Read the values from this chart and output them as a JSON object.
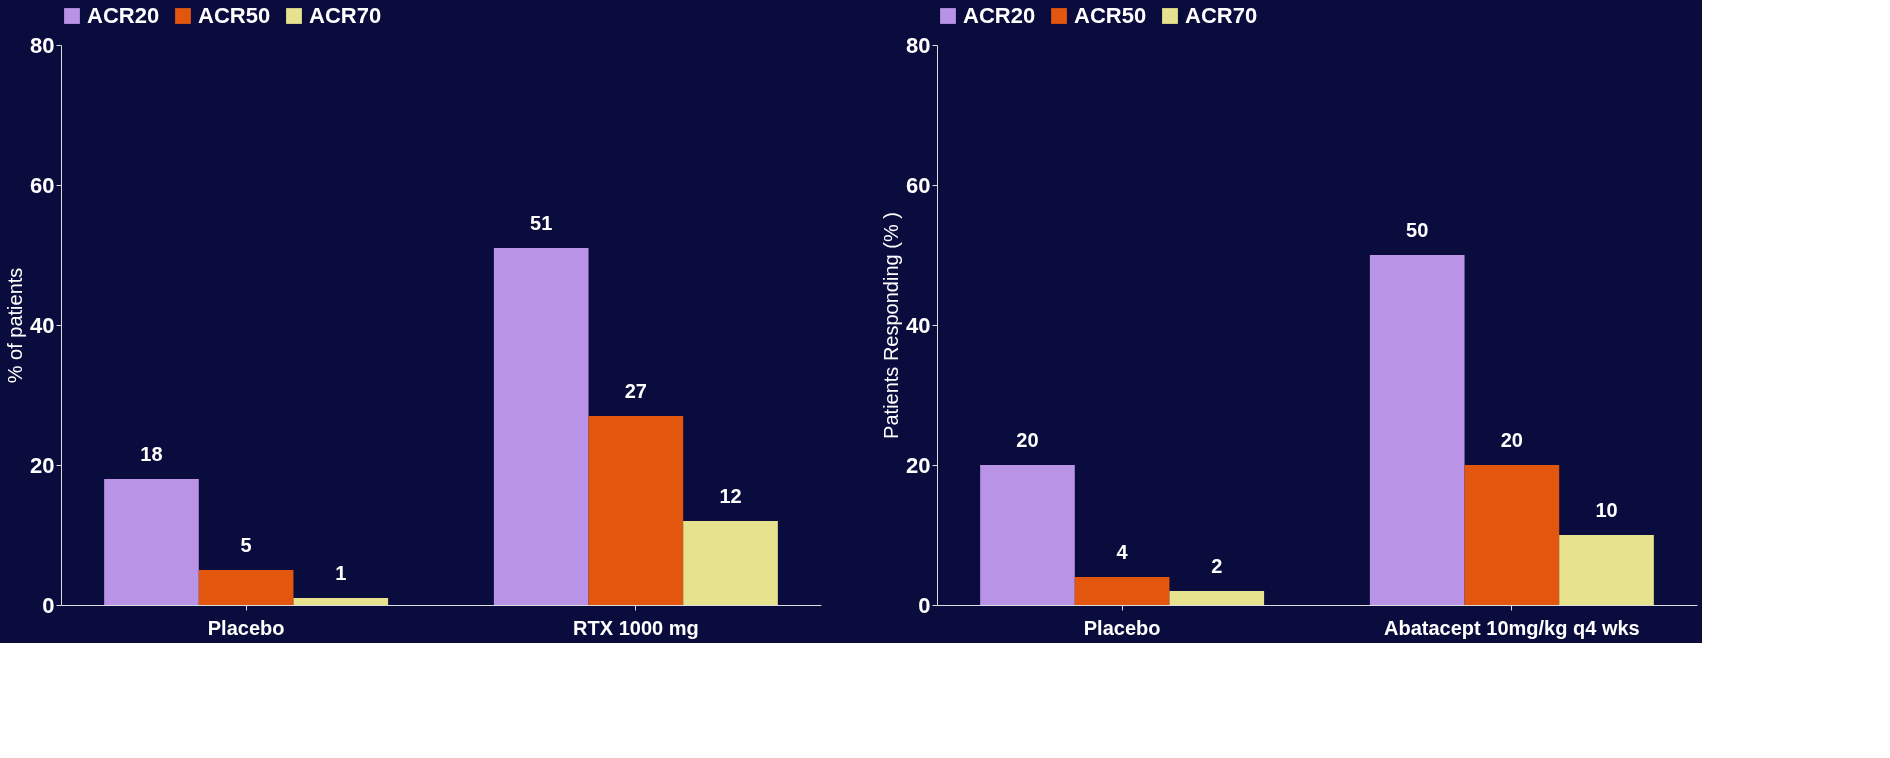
{
  "chart_data": [
    {
      "type": "bar",
      "ylabel": "% of patients",
      "categories": [
        "Placebo",
        "RTX 1000 mg"
      ],
      "series": [
        {
          "name": "ACR20",
          "color": "#b893e6",
          "values": [
            18,
            51
          ]
        },
        {
          "name": "ACR50",
          "color": "#e3560e",
          "values": [
            5,
            27
          ]
        },
        {
          "name": "ACR70",
          "color": "#e6e28e",
          "values": [
            1,
            12
          ]
        }
      ],
      "ylim": [
        0,
        80
      ],
      "yticks": [
        0,
        20,
        40,
        60,
        80
      ],
      "data_labels": true,
      "legend": "top",
      "grid": false
    },
    {
      "type": "bar",
      "ylabel": "Patients Responding (% )",
      "categories": [
        "Placebo",
        "Abatacept 10mg/kg q4 wks"
      ],
      "series": [
        {
          "name": "ACR20",
          "color": "#b893e6",
          "values": [
            20,
            50
          ]
        },
        {
          "name": "ACR50",
          "color": "#e3560e",
          "values": [
            4,
            20
          ]
        },
        {
          "name": "ACR70",
          "color": "#e6e28e",
          "values": [
            2,
            10
          ]
        }
      ],
      "ylim": [
        0,
        80
      ],
      "yticks": [
        0,
        20,
        40,
        60,
        80
      ],
      "data_labels": true,
      "legend": "top",
      "grid": false
    }
  ]
}
